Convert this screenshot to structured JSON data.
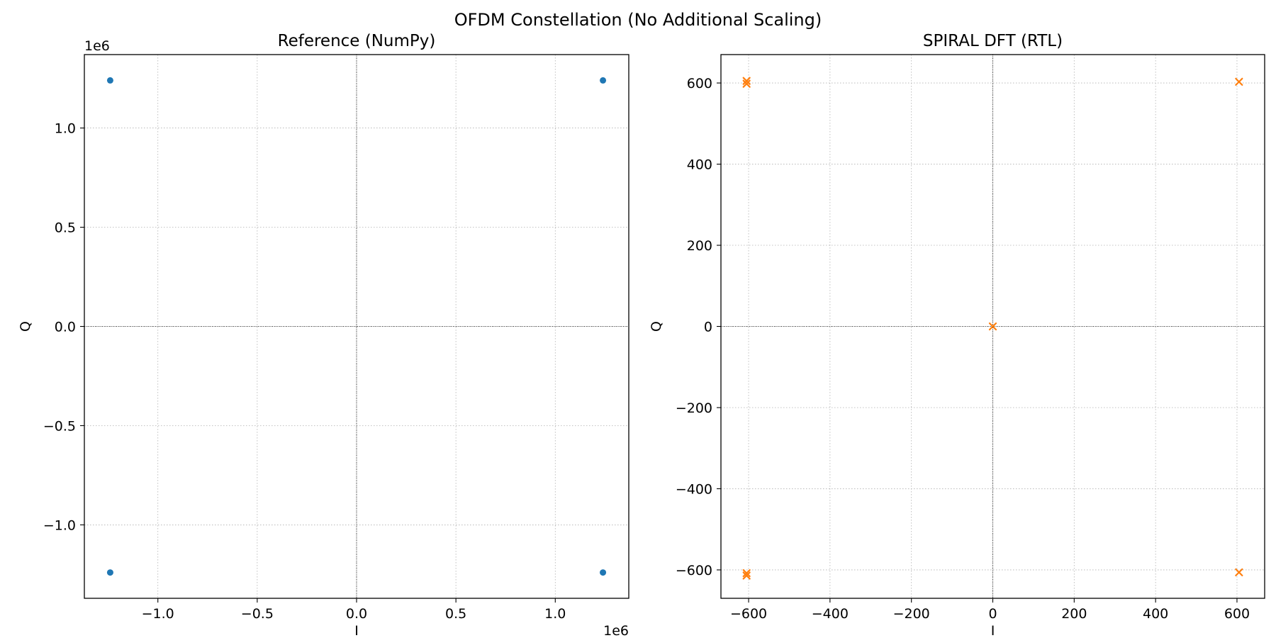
{
  "suptitle": "OFDM Constellation (No Additional Scaling)",
  "colors": {
    "reference_marker": "#1f77b4",
    "spiral_marker": "#ff7f0e",
    "grid": "#b0b0b0",
    "zero_line": "#000000"
  },
  "chart_data": [
    {
      "type": "scatter",
      "title": "Reference (NumPy)",
      "xlabel": "I",
      "ylabel": "Q",
      "xlim": [
        -1.37,
        1.37
      ],
      "ylim": [
        -1.37,
        1.37
      ],
      "x_multiplier_label": "1e6",
      "y_multiplier_label": "1e6",
      "xticks": [
        -1.0,
        -0.5,
        0.0,
        0.5,
        1.0
      ],
      "xtick_labels": [
        "−1.0",
        "−0.5",
        "0.0",
        "0.5",
        "1.0"
      ],
      "yticks": [
        -1.0,
        -0.5,
        0.0,
        0.5,
        1.0
      ],
      "ytick_labels": [
        "−1.0",
        "−0.5",
        "0.0",
        "0.5",
        "1.0"
      ],
      "grid": true,
      "zero_lines": true,
      "marker": "circle",
      "series": [
        {
          "points": [
            [
              -1.24,
              1.24
            ],
            [
              1.24,
              1.24
            ],
            [
              -1.24,
              -1.24
            ],
            [
              1.24,
              -1.24
            ]
          ]
        }
      ]
    },
    {
      "type": "scatter",
      "title": "SPIRAL DFT (RTL)",
      "xlabel": "I",
      "ylabel": "Q",
      "xlim": [
        -668,
        668
      ],
      "ylim": [
        -670,
        670
      ],
      "xticks": [
        -600,
        -400,
        -200,
        0,
        200,
        400,
        600
      ],
      "xtick_labels": [
        "−600",
        "−400",
        "−200",
        "0",
        "200",
        "400",
        "600"
      ],
      "yticks": [
        -600,
        -400,
        -200,
        0,
        200,
        400,
        600
      ],
      "ytick_labels": [
        "−600",
        "−400",
        "−200",
        "0",
        "200",
        "400",
        "600"
      ],
      "grid": true,
      "zero_lines": true,
      "marker": "x",
      "series": [
        {
          "points": [
            [
              -605,
              605
            ],
            [
              -605,
              598
            ],
            [
              605,
              603
            ],
            [
              0,
              0
            ],
            [
              -605,
              -608
            ],
            [
              -605,
              -614
            ],
            [
              605,
              -606
            ]
          ]
        }
      ]
    }
  ]
}
